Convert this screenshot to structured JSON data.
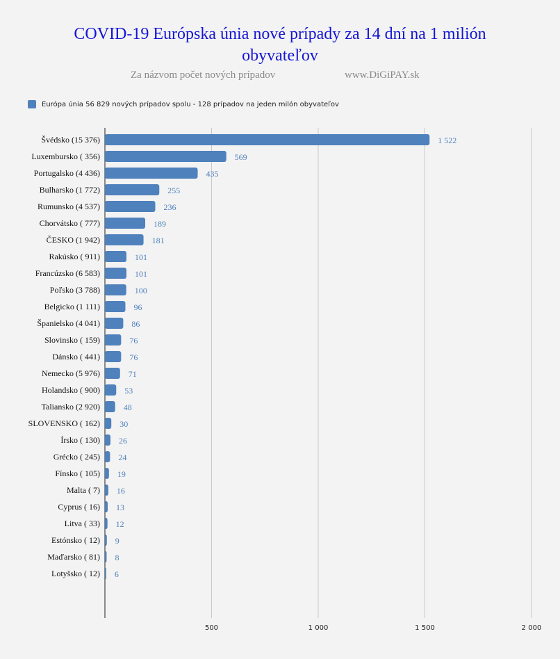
{
  "title_line1": "COVID-19 Európska únia  nové prípady za 14 dní  na 1 milión",
  "title_line2": "obyvateľov",
  "subtitle_left": "Za názvom počet nových prípadov",
  "subtitle_right": "www.DiGiPAY.sk",
  "colors": {
    "bar": "#4f81bd",
    "label": "#4f81bd",
    "title": "#1515d6",
    "grid": "#c8c8c8"
  },
  "chart_data": {
    "type": "bar",
    "orientation": "horizontal",
    "title": "COVID-19 Európska únia  nové prípady za 14 dní  na 1 milión obyvateľov",
    "legend": "Európa únia 56 829 nových prípadov spolu -  128 prípadov na jeden milón obyvateľov",
    "legend_position": "top-left",
    "grid": true,
    "xlim": [
      0,
      2000
    ],
    "x_ticks": [
      500,
      1000,
      1500,
      2000
    ],
    "x_tick_labels": [
      "500",
      "1 000",
      "1 500",
      "2 000"
    ],
    "categories": [
      "Švédsko (15 376)",
      "Luxembursko ( 356)",
      "Portugalsko (4 436)",
      "Bulharsko (1 772)",
      "Rumunsko (4 537)",
      "Chorvátsko ( 777)",
      "ČESKO (1 942)",
      "Rakúsko ( 911)",
      "Francúzsko (6 583)",
      "Poľsko (3 788)",
      "Belgicko (1 111)",
      "Španielsko (4 041)",
      "Slovinsko ( 159)",
      "Dánsko ( 441)",
      "Nemecko (5 976)",
      "Holandsko ( 900)",
      "Taliansko (2 920)",
      "SLOVENSKO ( 162)",
      "Írsko ( 130)",
      "Grécko ( 245)",
      "Fínsko ( 105)",
      "Malta ( 7)",
      "Cyprus ( 16)",
      "Litva ( 33)",
      "Estónsko ( 12)",
      "Maďarsko ( 81)",
      "Lotyšsko ( 12)"
    ],
    "values": [
      1522,
      569,
      435,
      255,
      236,
      189,
      181,
      101,
      101,
      100,
      96,
      86,
      76,
      76,
      71,
      53,
      48,
      30,
      26,
      24,
      19,
      16,
      13,
      12,
      9,
      8,
      6
    ],
    "value_labels": [
      "1 522",
      "569",
      "435",
      "255",
      "236",
      "189",
      "181",
      "101",
      "101",
      "100",
      "96",
      "86",
      "76",
      "76",
      "71",
      "53",
      "48",
      "30",
      "26",
      "24",
      "19",
      "16",
      "13",
      "12",
      "9",
      "8",
      "6"
    ]
  }
}
